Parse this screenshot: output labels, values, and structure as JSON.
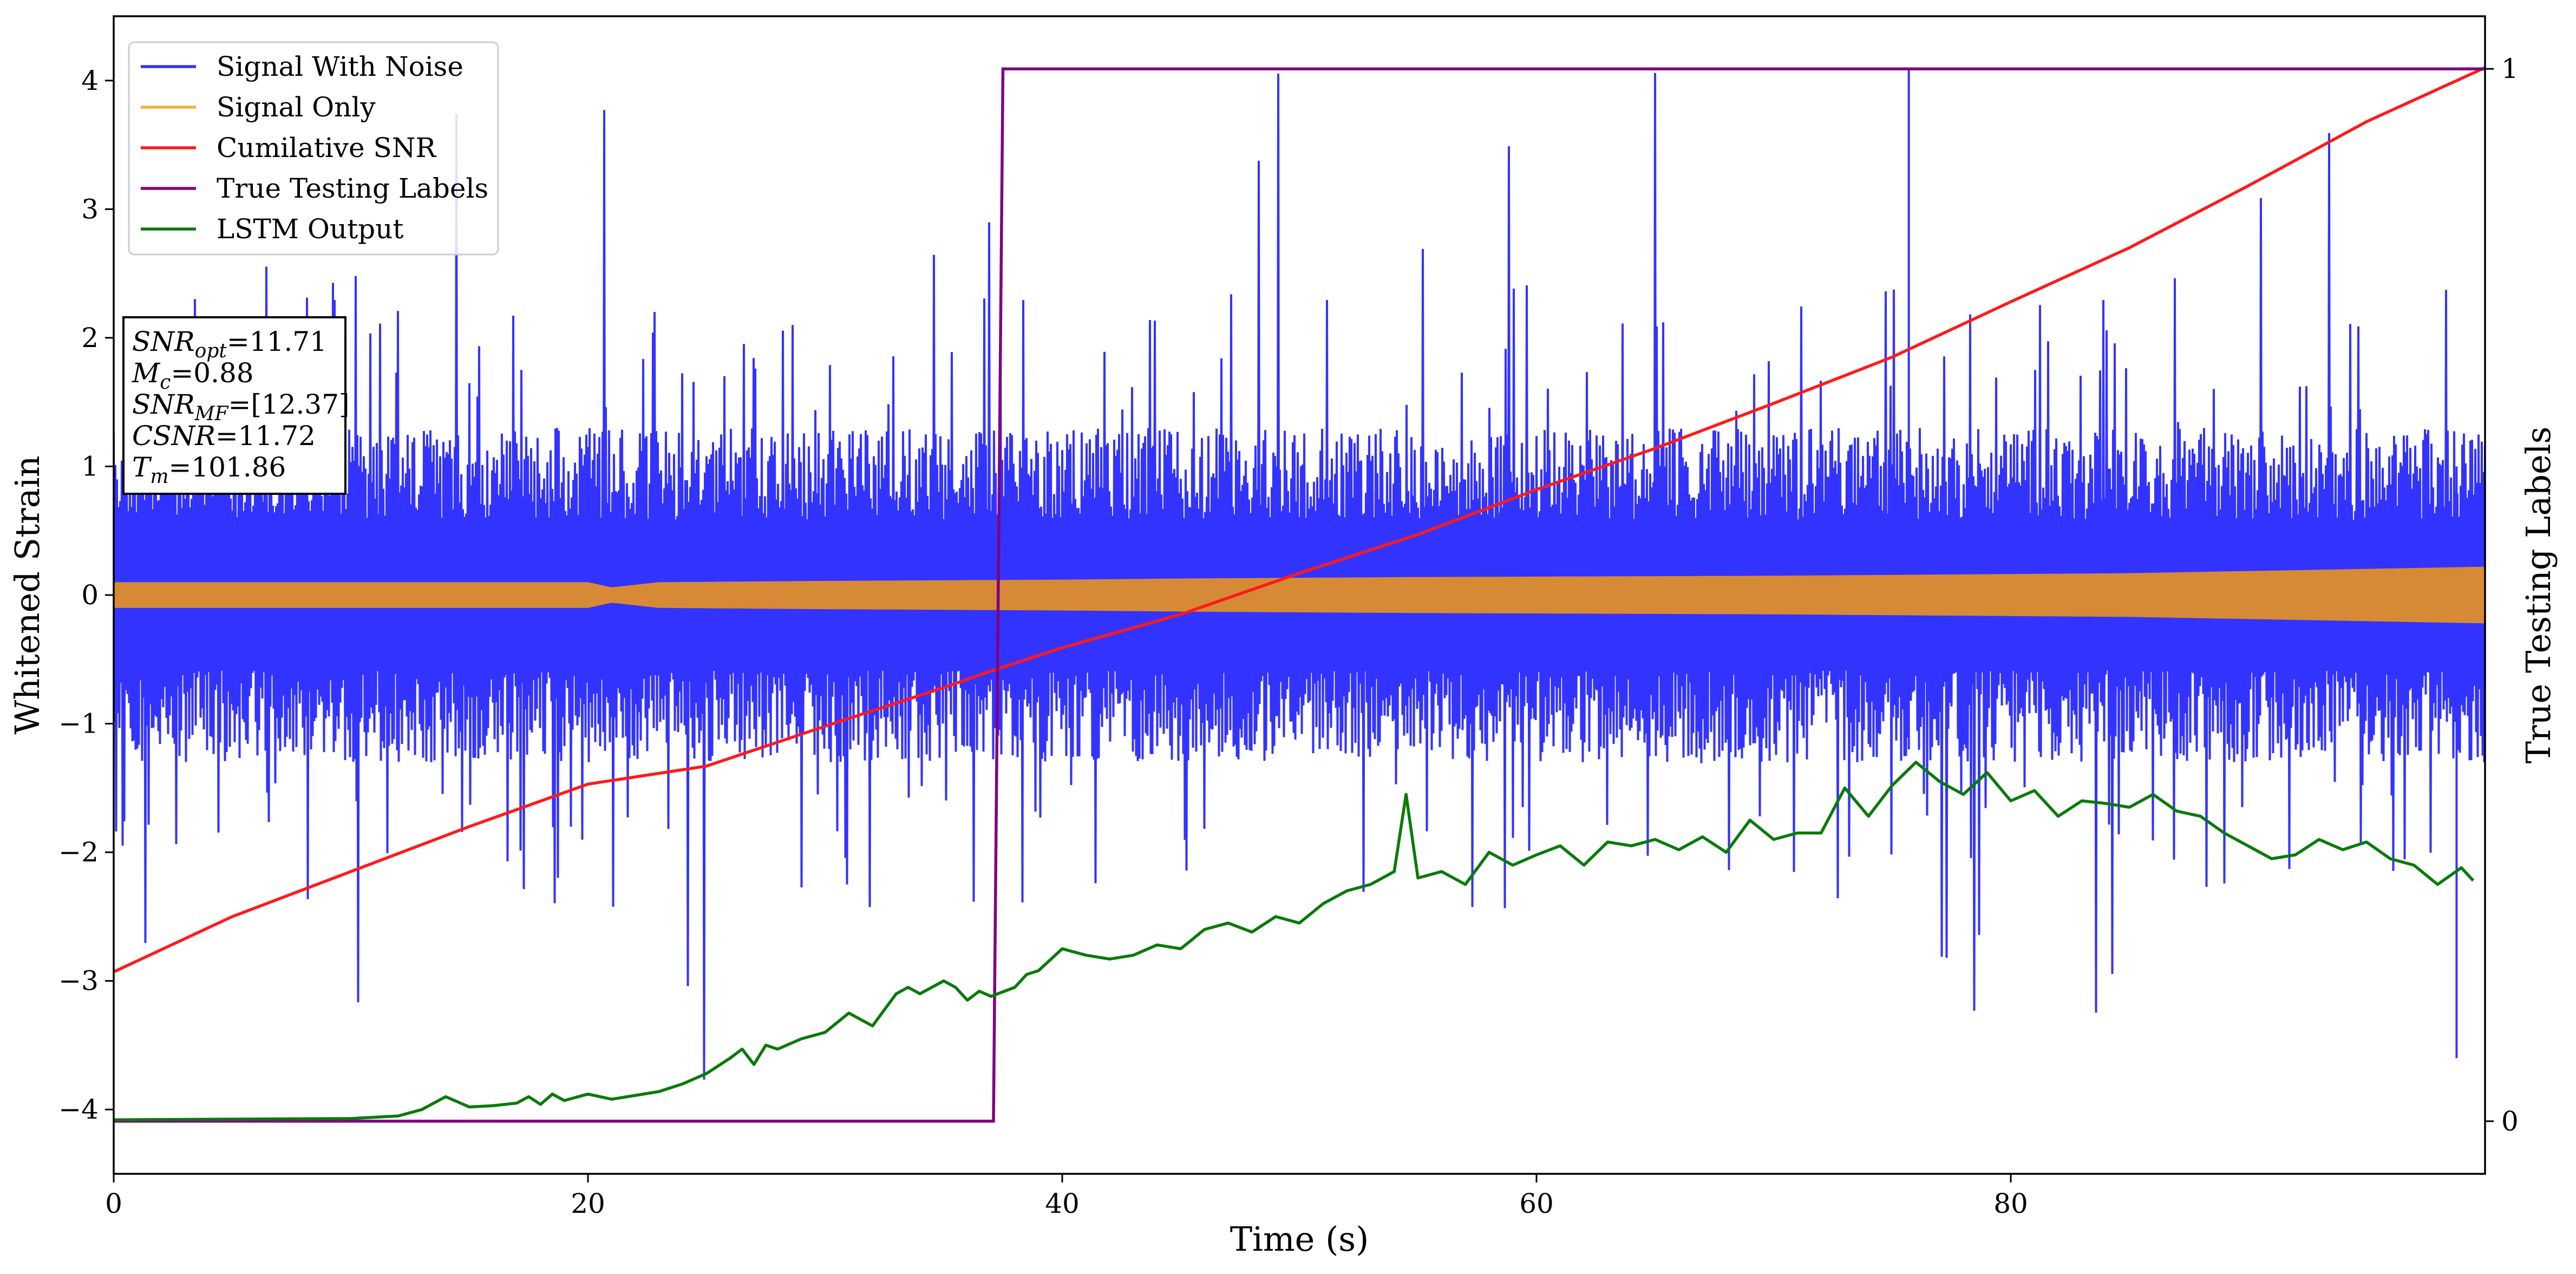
{
  "chart_data": {
    "type": "line",
    "title": "",
    "xlabel": "Time (s)",
    "ylabel": "Whitened Strain",
    "ylabel_right": "True Testing Labels",
    "xlim": [
      0,
      100
    ],
    "ylim": [
      -4.5,
      4.5
    ],
    "ylim_right": [
      -0.05,
      1.05
    ],
    "xticks": [
      0,
      20,
      40,
      60,
      80
    ],
    "yticks": [
      -4,
      -3,
      -2,
      -1,
      0,
      1,
      2,
      3,
      4
    ],
    "yticks_right": [
      0,
      1
    ],
    "grid": false,
    "legend_position": "top-left",
    "colors": {
      "noise": "#3333ff",
      "signal": "#f5b041",
      "signal_band": "#d68a35",
      "csnr": "#ff1a1a",
      "labels": "#800080",
      "lstm": "#0a7a0a"
    },
    "series": [
      {
        "name": "Signal With Noise",
        "axis": "left",
        "style": "noise",
        "envelope": {
          "typical_abs": 1.3,
          "spike_max": 4.1,
          "spike_min": -3.6
        }
      },
      {
        "name": "Signal Only",
        "axis": "left",
        "style": "band",
        "x": [
          0,
          20,
          21,
          23,
          30,
          40,
          46,
          55,
          70,
          85,
          100
        ],
        "half_width": [
          0.1,
          0.1,
          0.06,
          0.1,
          0.11,
          0.12,
          0.13,
          0.14,
          0.15,
          0.17,
          0.22
        ]
      },
      {
        "name": "Cumilative SNR",
        "axis": "left",
        "x": [
          0,
          5,
          10,
          15,
          20,
          25,
          30,
          35,
          37,
          40,
          45,
          50,
          55,
          60,
          65,
          70,
          75,
          80,
          85,
          90,
          95,
          100
        ],
        "values": [
          -2.93,
          -2.5,
          -2.15,
          -1.8,
          -1.47,
          -1.33,
          -1.02,
          -0.72,
          -0.59,
          -0.41,
          -0.15,
          0.17,
          0.47,
          0.82,
          1.14,
          1.49,
          1.85,
          2.28,
          2.7,
          3.18,
          3.68,
          4.1
        ]
      },
      {
        "name": "True Testing Labels",
        "axis": "right",
        "x": [
          0,
          37.1,
          37.5,
          100
        ],
        "values": [
          0,
          0,
          1,
          1
        ]
      },
      {
        "name": "LSTM Output",
        "axis": "left",
        "x": [
          0,
          10,
          12,
          13,
          14,
          15,
          16,
          17,
          17.5,
          18,
          18.5,
          19,
          20,
          21,
          22,
          23,
          24,
          25,
          26,
          26.5,
          27,
          27.5,
          28,
          29,
          30,
          31,
          32,
          33,
          33.5,
          34,
          35,
          35.5,
          36,
          36.5,
          37,
          38,
          38.5,
          39,
          40,
          41,
          42,
          43,
          44,
          45,
          46,
          47,
          48,
          49,
          50,
          51,
          52,
          53,
          54,
          54.5,
          55,
          56,
          57,
          58,
          59,
          60,
          61,
          62,
          63,
          64,
          65,
          66,
          67,
          68,
          69,
          70,
          71,
          72,
          73,
          74,
          75,
          76,
          77,
          78,
          79,
          80,
          81,
          82,
          83,
          84,
          85,
          86,
          87,
          88,
          89,
          90,
          91,
          92,
          93,
          94,
          95,
          96,
          97,
          98,
          99,
          99.5
        ],
        "values": [
          -4.08,
          -4.07,
          -4.05,
          -4.0,
          -3.9,
          -3.98,
          -3.97,
          -3.95,
          -3.9,
          -3.96,
          -3.88,
          -3.93,
          -3.88,
          -3.92,
          -3.89,
          -3.86,
          -3.8,
          -3.72,
          -3.6,
          -3.53,
          -3.65,
          -3.5,
          -3.53,
          -3.45,
          -3.4,
          -3.25,
          -3.35,
          -3.1,
          -3.05,
          -3.1,
          -3.0,
          -3.05,
          -3.15,
          -3.08,
          -3.12,
          -3.05,
          -2.95,
          -2.92,
          -2.75,
          -2.8,
          -2.83,
          -2.8,
          -2.72,
          -2.75,
          -2.6,
          -2.55,
          -2.62,
          -2.5,
          -2.55,
          -2.4,
          -2.3,
          -2.25,
          -2.15,
          -1.55,
          -2.2,
          -2.15,
          -2.25,
          -2.0,
          -2.1,
          -2.02,
          -1.95,
          -2.1,
          -1.92,
          -1.95,
          -1.9,
          -1.98,
          -1.88,
          -2.0,
          -1.75,
          -1.9,
          -1.85,
          -1.85,
          -1.5,
          -1.72,
          -1.48,
          -1.3,
          -1.45,
          -1.55,
          -1.38,
          -1.6,
          -1.52,
          -1.72,
          -1.6,
          -1.62,
          -1.65,
          -1.55,
          -1.68,
          -1.72,
          -1.85,
          -1.95,
          -2.05,
          -2.02,
          -1.9,
          -1.98,
          -1.92,
          -2.05,
          -2.1,
          -2.25,
          -2.12,
          -2.22
        ]
      }
    ],
    "info_box": [
      {
        "name": "SNR",
        "sub": "opt",
        "value": "=11.71"
      },
      {
        "name": "M",
        "sub": "c",
        "value": "=0.88"
      },
      {
        "name": "SNR",
        "sub": "MF",
        "value": "=[12.37]"
      },
      {
        "name": "CSNR",
        "sub": "",
        "value": "=11.72"
      },
      {
        "name": "T",
        "sub": "m",
        "value": "=101.86"
      }
    ]
  }
}
